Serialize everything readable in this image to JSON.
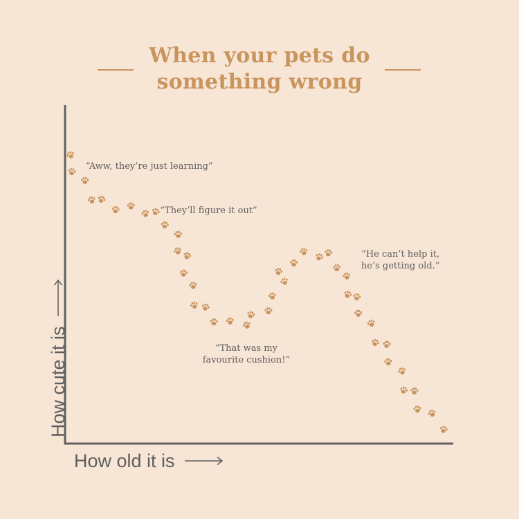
{
  "chart_data": {
    "type": "scatter",
    "title_lines": [
      "When your pets do",
      "something wrong"
    ],
    "xlabel": "How old it is",
    "ylabel": "How cute it is",
    "xlim": [
      0,
      100
    ],
    "ylim": [
      0,
      100
    ],
    "marker": "paw-print",
    "marker_color": "#c9955e",
    "axis_color": "#616161",
    "background": "#f7e5d5",
    "grid": false,
    "points": [
      {
        "x": 1.1,
        "y": 89.4
      },
      {
        "x": 1.4,
        "y": 84.1
      },
      {
        "x": 4.8,
        "y": 81.3
      },
      {
        "x": 6.6,
        "y": 75.2
      },
      {
        "x": 9.1,
        "y": 75.4
      },
      {
        "x": 12.8,
        "y": 72.1
      },
      {
        "x": 16.8,
        "y": 73.3
      },
      {
        "x": 20.6,
        "y": 70.9
      },
      {
        "x": 23.2,
        "y": 71.5
      },
      {
        "x": 25.6,
        "y": 67.3
      },
      {
        "x": 29.1,
        "y": 64.3
      },
      {
        "x": 29.0,
        "y": 59.1
      },
      {
        "x": 31.4,
        "y": 57.6
      },
      {
        "x": 30.5,
        "y": 52.1
      },
      {
        "x": 33.0,
        "y": 48.2
      },
      {
        "x": 33.3,
        "y": 42.0
      },
      {
        "x": 36.2,
        "y": 41.4
      },
      {
        "x": 38.4,
        "y": 36.7
      },
      {
        "x": 42.6,
        "y": 37.0
      },
      {
        "x": 47.0,
        "y": 35.7
      },
      {
        "x": 48.0,
        "y": 39.0
      },
      {
        "x": 52.6,
        "y": 40.2
      },
      {
        "x": 53.6,
        "y": 44.9
      },
      {
        "x": 56.8,
        "y": 49.5
      },
      {
        "x": 55.2,
        "y": 52.6
      },
      {
        "x": 59.2,
        "y": 55.3
      },
      {
        "x": 61.8,
        "y": 58.9
      },
      {
        "x": 65.8,
        "y": 57.2
      },
      {
        "x": 68.2,
        "y": 58.5
      },
      {
        "x": 70.4,
        "y": 53.8
      },
      {
        "x": 73.0,
        "y": 51.2
      },
      {
        "x": 73.2,
        "y": 45.4
      },
      {
        "x": 75.6,
        "y": 44.6
      },
      {
        "x": 76.0,
        "y": 39.4
      },
      {
        "x": 79.4,
        "y": 36.3
      },
      {
        "x": 80.4,
        "y": 30.2
      },
      {
        "x": 83.4,
        "y": 29.6
      },
      {
        "x": 83.8,
        "y": 24.1
      },
      {
        "x": 87.4,
        "y": 21.2
      },
      {
        "x": 87.8,
        "y": 15.2
      },
      {
        "x": 90.6,
        "y": 14.9
      },
      {
        "x": 91.4,
        "y": 9.2
      },
      {
        "x": 95.2,
        "y": 7.9
      },
      {
        "x": 98.2,
        "y": 2.8
      }
    ],
    "annotations": [
      {
        "lines": [
          "“Aww, they’re just learning”"
        ],
        "x": 21.6,
        "y": 86.0
      },
      {
        "lines": [
          "“They’ll figure it out”"
        ],
        "x": 37.0,
        "y": 72.0
      },
      {
        "lines": [
          "“That was my",
          "favourite cushion!”"
        ],
        "x": 46.8,
        "y": 26.7
      },
      {
        "lines": [
          "“He can’t help it,",
          "he’s getting old.”"
        ],
        "x": 87.0,
        "y": 56.3
      }
    ]
  }
}
